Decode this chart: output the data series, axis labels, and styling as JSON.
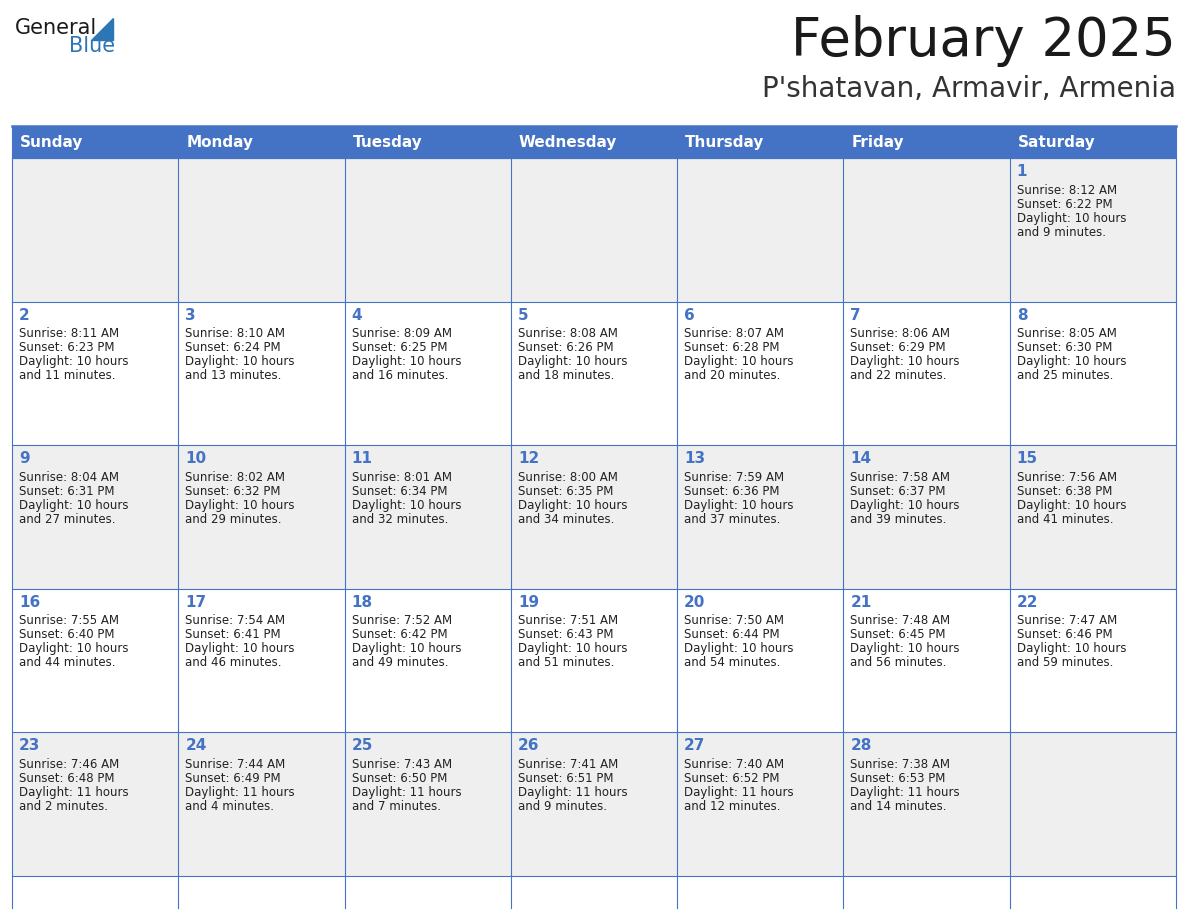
{
  "title": "February 2025",
  "subtitle": "P'shatavan, Armavir, Armenia",
  "header_bg_color": "#4472C4",
  "header_text_color": "#FFFFFF",
  "cell_bg_even": "#EFEFEF",
  "cell_bg_odd": "#FFFFFF",
  "border_color": "#4472C4",
  "title_color": "#1a1a1a",
  "subtitle_color": "#333333",
  "day_number_color": "#4472C4",
  "cell_text_color": "#222222",
  "logo_general_color": "#1a1a1a",
  "logo_blue_color": "#2E75B6",
  "days_of_week": [
    "Sunday",
    "Monday",
    "Tuesday",
    "Wednesday",
    "Thursday",
    "Friday",
    "Saturday"
  ],
  "num_cols": 7,
  "num_rows": 5,
  "calendar_data": [
    {
      "day": 1,
      "col": 6,
      "row": 0,
      "sunrise": "8:12 AM",
      "sunset": "6:22 PM",
      "daylight_h": "10 hours",
      "daylight_m": "and 9 minutes."
    },
    {
      "day": 2,
      "col": 0,
      "row": 1,
      "sunrise": "8:11 AM",
      "sunset": "6:23 PM",
      "daylight_h": "10 hours",
      "daylight_m": "and 11 minutes."
    },
    {
      "day": 3,
      "col": 1,
      "row": 1,
      "sunrise": "8:10 AM",
      "sunset": "6:24 PM",
      "daylight_h": "10 hours",
      "daylight_m": "and 13 minutes."
    },
    {
      "day": 4,
      "col": 2,
      "row": 1,
      "sunrise": "8:09 AM",
      "sunset": "6:25 PM",
      "daylight_h": "10 hours",
      "daylight_m": "and 16 minutes."
    },
    {
      "day": 5,
      "col": 3,
      "row": 1,
      "sunrise": "8:08 AM",
      "sunset": "6:26 PM",
      "daylight_h": "10 hours",
      "daylight_m": "and 18 minutes."
    },
    {
      "day": 6,
      "col": 4,
      "row": 1,
      "sunrise": "8:07 AM",
      "sunset": "6:28 PM",
      "daylight_h": "10 hours",
      "daylight_m": "and 20 minutes."
    },
    {
      "day": 7,
      "col": 5,
      "row": 1,
      "sunrise": "8:06 AM",
      "sunset": "6:29 PM",
      "daylight_h": "10 hours",
      "daylight_m": "and 22 minutes."
    },
    {
      "day": 8,
      "col": 6,
      "row": 1,
      "sunrise": "8:05 AM",
      "sunset": "6:30 PM",
      "daylight_h": "10 hours",
      "daylight_m": "and 25 minutes."
    },
    {
      "day": 9,
      "col": 0,
      "row": 2,
      "sunrise": "8:04 AM",
      "sunset": "6:31 PM",
      "daylight_h": "10 hours",
      "daylight_m": "and 27 minutes."
    },
    {
      "day": 10,
      "col": 1,
      "row": 2,
      "sunrise": "8:02 AM",
      "sunset": "6:32 PM",
      "daylight_h": "10 hours",
      "daylight_m": "and 29 minutes."
    },
    {
      "day": 11,
      "col": 2,
      "row": 2,
      "sunrise": "8:01 AM",
      "sunset": "6:34 PM",
      "daylight_h": "10 hours",
      "daylight_m": "and 32 minutes."
    },
    {
      "day": 12,
      "col": 3,
      "row": 2,
      "sunrise": "8:00 AM",
      "sunset": "6:35 PM",
      "daylight_h": "10 hours",
      "daylight_m": "and 34 minutes."
    },
    {
      "day": 13,
      "col": 4,
      "row": 2,
      "sunrise": "7:59 AM",
      "sunset": "6:36 PM",
      "daylight_h": "10 hours",
      "daylight_m": "and 37 minutes."
    },
    {
      "day": 14,
      "col": 5,
      "row": 2,
      "sunrise": "7:58 AM",
      "sunset": "6:37 PM",
      "daylight_h": "10 hours",
      "daylight_m": "and 39 minutes."
    },
    {
      "day": 15,
      "col": 6,
      "row": 2,
      "sunrise": "7:56 AM",
      "sunset": "6:38 PM",
      "daylight_h": "10 hours",
      "daylight_m": "and 41 minutes."
    },
    {
      "day": 16,
      "col": 0,
      "row": 3,
      "sunrise": "7:55 AM",
      "sunset": "6:40 PM",
      "daylight_h": "10 hours",
      "daylight_m": "and 44 minutes."
    },
    {
      "day": 17,
      "col": 1,
      "row": 3,
      "sunrise": "7:54 AM",
      "sunset": "6:41 PM",
      "daylight_h": "10 hours",
      "daylight_m": "and 46 minutes."
    },
    {
      "day": 18,
      "col": 2,
      "row": 3,
      "sunrise": "7:52 AM",
      "sunset": "6:42 PM",
      "daylight_h": "10 hours",
      "daylight_m": "and 49 minutes."
    },
    {
      "day": 19,
      "col": 3,
      "row": 3,
      "sunrise": "7:51 AM",
      "sunset": "6:43 PM",
      "daylight_h": "10 hours",
      "daylight_m": "and 51 minutes."
    },
    {
      "day": 20,
      "col": 4,
      "row": 3,
      "sunrise": "7:50 AM",
      "sunset": "6:44 PM",
      "daylight_h": "10 hours",
      "daylight_m": "and 54 minutes."
    },
    {
      "day": 21,
      "col": 5,
      "row": 3,
      "sunrise": "7:48 AM",
      "sunset": "6:45 PM",
      "daylight_h": "10 hours",
      "daylight_m": "and 56 minutes."
    },
    {
      "day": 22,
      "col": 6,
      "row": 3,
      "sunrise": "7:47 AM",
      "sunset": "6:46 PM",
      "daylight_h": "10 hours",
      "daylight_m": "and 59 minutes."
    },
    {
      "day": 23,
      "col": 0,
      "row": 4,
      "sunrise": "7:46 AM",
      "sunset": "6:48 PM",
      "daylight_h": "11 hours",
      "daylight_m": "and 2 minutes."
    },
    {
      "day": 24,
      "col": 1,
      "row": 4,
      "sunrise": "7:44 AM",
      "sunset": "6:49 PM",
      "daylight_h": "11 hours",
      "daylight_m": "and 4 minutes."
    },
    {
      "day": 25,
      "col": 2,
      "row": 4,
      "sunrise": "7:43 AM",
      "sunset": "6:50 PM",
      "daylight_h": "11 hours",
      "daylight_m": "and 7 minutes."
    },
    {
      "day": 26,
      "col": 3,
      "row": 4,
      "sunrise": "7:41 AM",
      "sunset": "6:51 PM",
      "daylight_h": "11 hours",
      "daylight_m": "and 9 minutes."
    },
    {
      "day": 27,
      "col": 4,
      "row": 4,
      "sunrise": "7:40 AM",
      "sunset": "6:52 PM",
      "daylight_h": "11 hours",
      "daylight_m": "and 12 minutes."
    },
    {
      "day": 28,
      "col": 5,
      "row": 4,
      "sunrise": "7:38 AM",
      "sunset": "6:53 PM",
      "daylight_h": "11 hours",
      "daylight_m": "and 14 minutes."
    }
  ]
}
